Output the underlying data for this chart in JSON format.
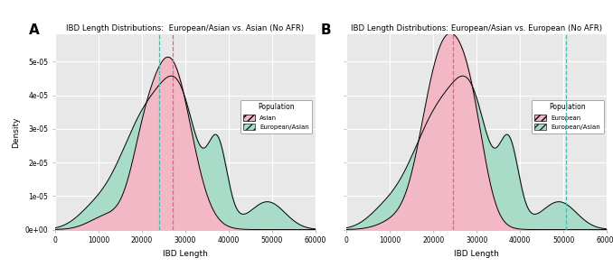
{
  "panel_A": {
    "title": "IBD Length Distributions:  European/Asian vs. Asian (No AFR)",
    "label": "A",
    "pop1_label": "Asian",
    "pop2_label": "European/Asian",
    "pop1_color": "#F2B8C6",
    "pop2_color": "#A8DCC8",
    "vline1_color": "#FF5577",
    "vline2_color": "#44BBAA",
    "vline1_x": 27000,
    "vline2_x": 24000
  },
  "panel_B": {
    "title": "IBD Length Distributions: European/Asian vs. European (No AFR)",
    "label": "B",
    "pop1_label": "European",
    "pop2_label": "European/Asian",
    "pop1_color": "#F2B8C6",
    "pop2_color": "#A8DCC8",
    "vline1_color": "#FF5577",
    "vline2_color": "#44BBAA",
    "vline1_x": 24500,
    "vline2_x": 50500
  },
  "xlim": [
    0,
    60000
  ],
  "ylim": [
    0,
    5.8e-05
  ],
  "xlabel": "IBD Length",
  "ylabel": "Density",
  "bg_color": "#E8E8E8",
  "grid_color": "white",
  "yticks": [
    0,
    1e-05,
    2e-05,
    3e-05,
    4e-05,
    5e-05
  ],
  "ylabels": [
    "0e+00",
    "1e-05",
    "2e-05",
    "3e-05",
    "4e-05",
    "5e-05"
  ],
  "xticks": [
    0,
    10000,
    20000,
    30000,
    40000,
    50000,
    60000
  ],
  "xtick_labels": [
    "0",
    "10000",
    "20000",
    "30000",
    "40000",
    "50000",
    "60000"
  ]
}
